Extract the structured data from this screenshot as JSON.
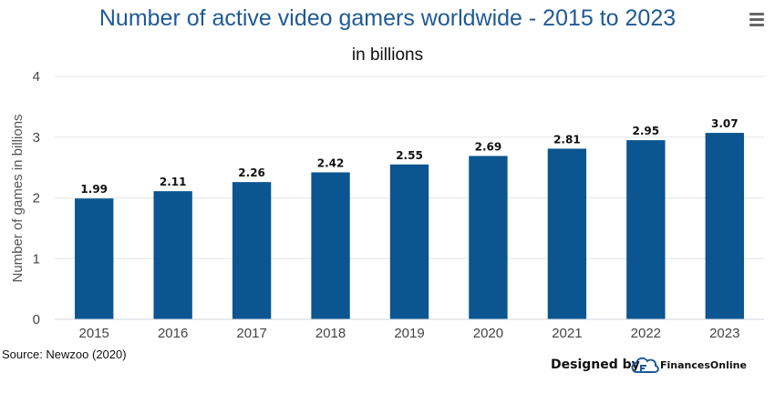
{
  "chart_data": {
    "type": "bar",
    "title": "Number of active video gamers worldwide - 2015 to 2023",
    "subtitle": "in billions",
    "xlabel": "",
    "ylabel": "Number of games in billions",
    "categories": [
      "2015",
      "2016",
      "2017",
      "2018",
      "2019",
      "2020",
      "2021",
      "2022",
      "2023"
    ],
    "values": [
      1.99,
      2.11,
      2.26,
      2.42,
      2.55,
      2.69,
      2.81,
      2.95,
      3.07
    ],
    "value_labels": [
      "1.99",
      "2.11",
      "2.26",
      "2.42",
      "2.55",
      "2.69",
      "2.81",
      "2.95",
      "3.07"
    ],
    "ylim": [
      0,
      4
    ],
    "yticks": [
      "0",
      "1",
      "2",
      "3",
      "4"
    ],
    "grid": true,
    "legend": "none",
    "bar_color": "#0b5590"
  },
  "footer": {
    "source": "Source: Newzoo (2020)",
    "designed_by": "Designed by",
    "brand": "FinancesOnline"
  },
  "colors": {
    "title": "#1f5a96",
    "bar": "#0b5590",
    "menu_icon": "#666666"
  },
  "icons": {
    "menu": "hamburger-menu-icon",
    "brand_logo": "financesonline-logo-icon"
  }
}
